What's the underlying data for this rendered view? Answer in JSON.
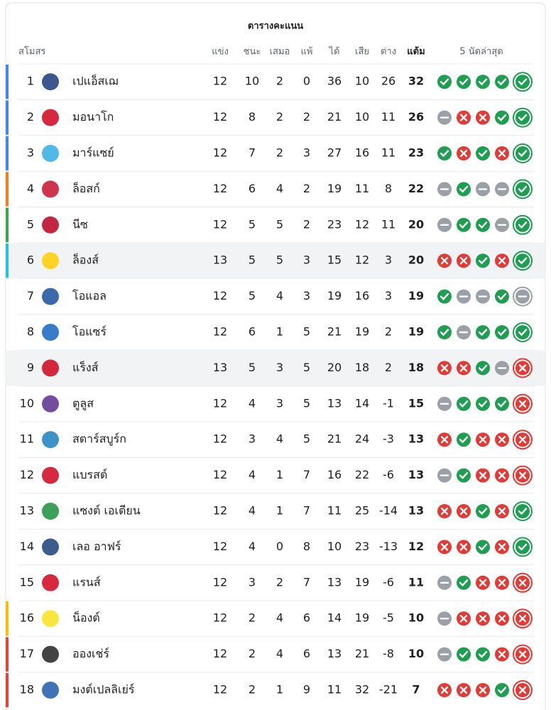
{
  "title": "ตารางคะแนน",
  "columns": {
    "club": "สโมสร",
    "played": "แข่ง",
    "won": "ชนะ",
    "drawn": "เสมอ",
    "lost": "แพ้",
    "gf": "ได้",
    "ga": "เสีย",
    "gd": "ต่าง",
    "pts": "แต้ม",
    "form": "5 นัดล่าสุด"
  },
  "rows": [
    {
      "pos": 1,
      "team": "เปแอ็สเฌ",
      "played": 12,
      "won": 10,
      "drawn": 2,
      "lost": 0,
      "gf": 36,
      "ga": 10,
      "gd": 26,
      "pts": 32,
      "form": [
        "W",
        "W",
        "W",
        "W",
        "W"
      ],
      "zone": "#4285f4"
    },
    {
      "pos": 2,
      "team": "มอนาโก",
      "played": 12,
      "won": 8,
      "drawn": 2,
      "lost": 2,
      "gf": 21,
      "ga": 10,
      "gd": 11,
      "pts": 26,
      "form": [
        "D",
        "L",
        "L",
        "W",
        "W"
      ],
      "zone": "#4285f4"
    },
    {
      "pos": 3,
      "team": "มาร์แซย์",
      "played": 12,
      "won": 7,
      "drawn": 2,
      "lost": 3,
      "gf": 27,
      "ga": 16,
      "gd": 11,
      "pts": 23,
      "form": [
        "W",
        "L",
        "W",
        "L",
        "W"
      ],
      "zone": "#4285f4"
    },
    {
      "pos": 4,
      "team": "ล็อสก์",
      "played": 12,
      "won": 6,
      "drawn": 4,
      "lost": 2,
      "gf": 19,
      "ga": 11,
      "gd": 8,
      "pts": 22,
      "form": [
        "D",
        "W",
        "D",
        "D",
        "W"
      ],
      "zone": "#fa7b17"
    },
    {
      "pos": 5,
      "team": "นีซ",
      "played": 12,
      "won": 5,
      "drawn": 5,
      "lost": 2,
      "gf": 23,
      "ga": 12,
      "gd": 11,
      "pts": 20,
      "form": [
        "D",
        "W",
        "W",
        "D",
        "W"
      ],
      "zone": "#34a853"
    },
    {
      "pos": 6,
      "team": "ล็องส์",
      "played": 13,
      "won": 5,
      "drawn": 5,
      "lost": 3,
      "gf": 15,
      "ga": 12,
      "gd": 3,
      "pts": 20,
      "form": [
        "L",
        "L",
        "W",
        "L",
        "W"
      ],
      "zone": "#24c1e0",
      "highlight": true
    },
    {
      "pos": 7,
      "team": "โอแอล",
      "played": 12,
      "won": 5,
      "drawn": 4,
      "lost": 3,
      "gf": 19,
      "ga": 16,
      "gd": 3,
      "pts": 19,
      "form": [
        "W",
        "D",
        "D",
        "W",
        "D"
      ]
    },
    {
      "pos": 8,
      "team": "โอแซร์",
      "played": 12,
      "won": 6,
      "drawn": 1,
      "lost": 5,
      "gf": 21,
      "ga": 19,
      "gd": 2,
      "pts": 19,
      "form": [
        "W",
        "D",
        "W",
        "W",
        "W"
      ]
    },
    {
      "pos": 9,
      "team": "แร็งส์",
      "played": 13,
      "won": 5,
      "drawn": 3,
      "lost": 5,
      "gf": 20,
      "ga": 18,
      "gd": 2,
      "pts": 18,
      "form": [
        "L",
        "L",
        "W",
        "D",
        "L"
      ],
      "highlight": true
    },
    {
      "pos": 10,
      "team": "ตูลูส",
      "played": 12,
      "won": 4,
      "drawn": 3,
      "lost": 5,
      "gf": 13,
      "ga": 14,
      "gd": -1,
      "pts": 15,
      "form": [
        "D",
        "W",
        "W",
        "W",
        "L"
      ]
    },
    {
      "pos": 11,
      "team": "สตาร์สบูร์ก",
      "played": 12,
      "won": 3,
      "drawn": 4,
      "lost": 5,
      "gf": 21,
      "ga": 24,
      "gd": -3,
      "pts": 13,
      "form": [
        "L",
        "W",
        "L",
        "L",
        "L"
      ]
    },
    {
      "pos": 12,
      "team": "แบรสต์",
      "played": 12,
      "won": 4,
      "drawn": 1,
      "lost": 7,
      "gf": 16,
      "ga": 22,
      "gd": -6,
      "pts": 13,
      "form": [
        "D",
        "W",
        "L",
        "L",
        "L"
      ]
    },
    {
      "pos": 13,
      "team": "แซงต์ เอเตียน",
      "played": 12,
      "won": 4,
      "drawn": 1,
      "lost": 7,
      "gf": 11,
      "ga": 25,
      "gd": -14,
      "pts": 13,
      "form": [
        "L",
        "L",
        "W",
        "L",
        "W"
      ]
    },
    {
      "pos": 14,
      "team": "เลอ อาฟร์",
      "played": 12,
      "won": 4,
      "drawn": 0,
      "lost": 8,
      "gf": 10,
      "ga": 23,
      "gd": -13,
      "pts": 12,
      "form": [
        "L",
        "L",
        "W",
        "L",
        "W"
      ]
    },
    {
      "pos": 15,
      "team": "แรนส์",
      "played": 12,
      "won": 3,
      "drawn": 2,
      "lost": 7,
      "gf": 13,
      "ga": 19,
      "gd": -6,
      "pts": 11,
      "form": [
        "D",
        "W",
        "L",
        "L",
        "L"
      ]
    },
    {
      "pos": 16,
      "team": "น็องต์",
      "played": 12,
      "won": 2,
      "drawn": 4,
      "lost": 6,
      "gf": 14,
      "ga": 19,
      "gd": -5,
      "pts": 10,
      "form": [
        "D",
        "L",
        "L",
        "L",
        "L"
      ],
      "zone": "#fbbc04"
    },
    {
      "pos": 17,
      "team": "อองเช่ร์",
      "played": 12,
      "won": 2,
      "drawn": 4,
      "lost": 6,
      "gf": 13,
      "ga": 21,
      "gd": -8,
      "pts": 10,
      "form": [
        "D",
        "W",
        "W",
        "L",
        "L"
      ],
      "zone": "#ea4335"
    },
    {
      "pos": 18,
      "team": "มงต์เปลลิเย่ร์",
      "played": 12,
      "won": 2,
      "drawn": 1,
      "lost": 9,
      "gf": 11,
      "ga": 32,
      "gd": -21,
      "pts": 7,
      "form": [
        "L",
        "L",
        "L",
        "W",
        "L"
      ],
      "zone": "#ea4335"
    }
  ]
}
